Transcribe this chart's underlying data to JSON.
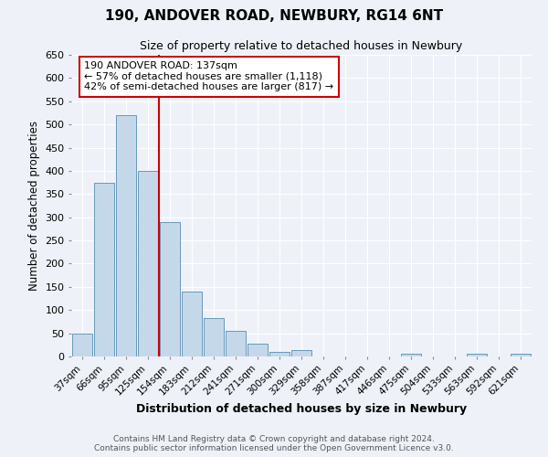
{
  "title": "190, ANDOVER ROAD, NEWBURY, RG14 6NT",
  "subtitle": "Size of property relative to detached houses in Newbury",
  "xlabel": "Distribution of detached houses by size in Newbury",
  "ylabel": "Number of detached properties",
  "bar_labels": [
    "37sqm",
    "66sqm",
    "95sqm",
    "125sqm",
    "154sqm",
    "183sqm",
    "212sqm",
    "241sqm",
    "271sqm",
    "300sqm",
    "329sqm",
    "358sqm",
    "387sqm",
    "417sqm",
    "446sqm",
    "475sqm",
    "504sqm",
    "533sqm",
    "563sqm",
    "592sqm",
    "621sqm"
  ],
  "bar_values": [
    50,
    375,
    520,
    400,
    290,
    140,
    82,
    55,
    28,
    10,
    13,
    0,
    0,
    0,
    0,
    5,
    0,
    0,
    5,
    0,
    5
  ],
  "bar_color": "#c5d8ea",
  "bar_edgecolor": "#6699bb",
  "vline_x": 3.5,
  "vline_color": "#cc0000",
  "annotation_box_text": "190 ANDOVER ROAD: 137sqm\n← 57% of detached houses are smaller (1,118)\n42% of semi-detached houses are larger (817) →",
  "ylim": [
    0,
    650
  ],
  "yticks": [
    0,
    50,
    100,
    150,
    200,
    250,
    300,
    350,
    400,
    450,
    500,
    550,
    600,
    650
  ],
  "bg_color": "#eef2f8",
  "grid_color": "#ffffff",
  "footer_line1": "Contains HM Land Registry data © Crown copyright and database right 2024.",
  "footer_line2": "Contains public sector information licensed under the Open Government Licence v3.0."
}
